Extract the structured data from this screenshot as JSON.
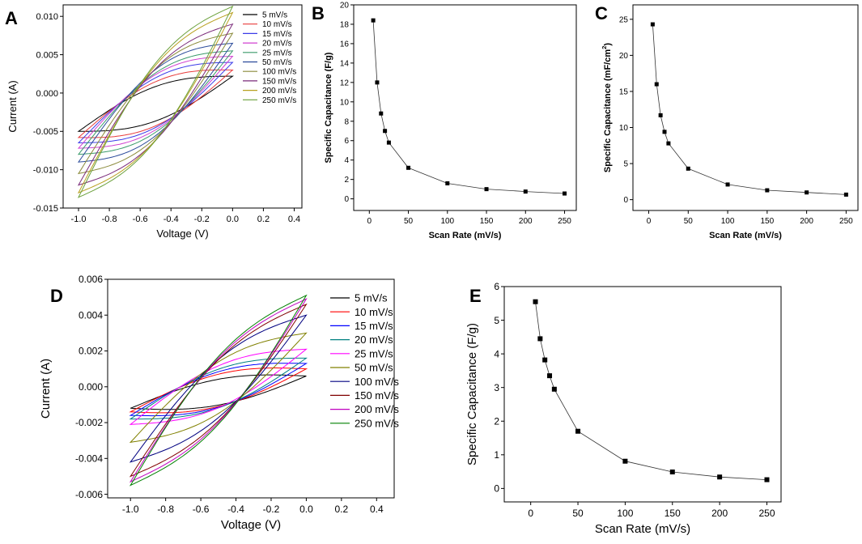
{
  "chart_data": [
    {
      "panel": "A",
      "type": "line",
      "xlabel": "Voltage (V)",
      "ylabel": "Current (A)",
      "xlim": [
        -1.1,
        0.45
      ],
      "ylim": [
        -0.015,
        0.0115
      ],
      "xticks": [
        "-1.0",
        "-0.8",
        "-0.6",
        "-0.4",
        "-0.2",
        "0.0",
        "0.2",
        "0.4"
      ],
      "xtick_values": [
        -1.0,
        -0.8,
        -0.6,
        -0.4,
        -0.2,
        0.0,
        0.2,
        0.4
      ],
      "yticks": [
        "-0.015",
        "-0.010",
        "-0.005",
        "0.000",
        "0.005",
        "0.010"
      ],
      "ytick_values": [
        -0.015,
        -0.01,
        -0.005,
        0.0,
        0.005,
        0.01
      ],
      "legend_position": "top-right",
      "series": [
        {
          "name": "5 mV/s",
          "color": "#000000",
          "cv": {
            "x0": -1.0,
            "x1": 0.0,
            "ymin": -0.005,
            "ymax": 0.0022,
            "cap": 0.0025
          }
        },
        {
          "name": "10 mV/s",
          "color": "#e83c3c",
          "cv": {
            "x0": -1.0,
            "x1": 0.0,
            "ymin": -0.0058,
            "ymax": 0.003,
            "cap": 0.0032
          }
        },
        {
          "name": "15 mV/s",
          "color": "#3c3ce8",
          "cv": {
            "x0": -1.0,
            "x1": 0.0,
            "ymin": -0.0065,
            "ymax": 0.004,
            "cap": 0.0036
          }
        },
        {
          "name": "20 mV/s",
          "color": "#d040d0",
          "cv": {
            "x0": -1.0,
            "x1": 0.0,
            "ymin": -0.0072,
            "ymax": 0.0048,
            "cap": 0.004
          }
        },
        {
          "name": "25 mV/s",
          "color": "#3a9a6a",
          "cv": {
            "x0": -1.0,
            "x1": 0.0,
            "ymin": -0.008,
            "ymax": 0.0055,
            "cap": 0.0043
          }
        },
        {
          "name": "50 mV/s",
          "color": "#2a4a9a",
          "cv": {
            "x0": -1.0,
            "x1": 0.0,
            "ymin": -0.009,
            "ymax": 0.0065,
            "cap": 0.0048
          }
        },
        {
          "name": "100 mV/s",
          "color": "#8a8a3a",
          "cv": {
            "x0": -1.0,
            "x1": 0.0,
            "ymin": -0.0105,
            "ymax": 0.0078,
            "cap": 0.005
          }
        },
        {
          "name": "150 mV/s",
          "color": "#7a2a7a",
          "cv": {
            "x0": -1.0,
            "x1": 0.0,
            "ymin": -0.012,
            "ymax": 0.009,
            "cap": 0.0052
          }
        },
        {
          "name": "200 mV/s",
          "color": "#b8a020",
          "cv": {
            "x0": -1.0,
            "x1": 0.0,
            "ymin": -0.013,
            "ymax": 0.0105,
            "cap": 0.0054
          }
        },
        {
          "name": "250 mV/s",
          "color": "#6aa03a",
          "cv": {
            "x0": -1.0,
            "x1": 0.0,
            "ymin": -0.0136,
            "ymax": 0.0113,
            "cap": 0.0056
          }
        }
      ]
    },
    {
      "panel": "B",
      "type": "line",
      "xlabel": "Scan Rate (mV/s)",
      "ylabel": "Specific Capacitance (F/g)",
      "xlim": [
        -20,
        265
      ],
      "ylim": [
        -1.2,
        20
      ],
      "xticks": [
        "0",
        "50",
        "100",
        "150",
        "200",
        "250"
      ],
      "xtick_values": [
        0,
        50,
        100,
        150,
        200,
        250
      ],
      "yticks": [
        "0",
        "2",
        "4",
        "6",
        "8",
        "10",
        "12",
        "14",
        "16",
        "18",
        "20"
      ],
      "ytick_values": [
        0,
        2,
        4,
        6,
        8,
        10,
        12,
        14,
        16,
        18,
        20
      ],
      "x": [
        5,
        10,
        15,
        20,
        25,
        50,
        100,
        150,
        200,
        250
      ],
      "y": [
        18.4,
        12.0,
        8.8,
        7.0,
        5.8,
        3.2,
        1.6,
        1.0,
        0.75,
        0.55
      ]
    },
    {
      "panel": "C",
      "type": "line",
      "xlabel": "Scan Rate (mV/s)",
      "ylabel_main": "Specific Capacitance (mF/cm",
      "ylabel_sup": "2",
      "ylabel_close": ")",
      "xlim": [
        -20,
        265
      ],
      "ylim": [
        -1.5,
        27
      ],
      "xticks": [
        "0",
        "50",
        "100",
        "150",
        "200",
        "250"
      ],
      "xtick_values": [
        0,
        50,
        100,
        150,
        200,
        250
      ],
      "yticks": [
        "0",
        "5",
        "10",
        "15",
        "20",
        "25"
      ],
      "ytick_values": [
        0,
        5,
        10,
        15,
        20,
        25
      ],
      "x": [
        5,
        10,
        15,
        20,
        25,
        50,
        100,
        150,
        200,
        250
      ],
      "y": [
        24.3,
        16.0,
        11.7,
        9.4,
        7.8,
        4.3,
        2.1,
        1.3,
        1.0,
        0.7
      ]
    },
    {
      "panel": "D",
      "type": "line",
      "xlabel": "Voltage (V)",
      "ylabel": "Current (A)",
      "xlim": [
        -1.13,
        0.5
      ],
      "ylim": [
        -0.0062,
        0.006
      ],
      "xticks": [
        "-1.0",
        "-0.8",
        "-0.6",
        "-0.4",
        "-0.2",
        "0.0",
        "0.2",
        "0.4"
      ],
      "xtick_values": [
        -1.0,
        -0.8,
        -0.6,
        -0.4,
        -0.2,
        0.0,
        0.2,
        0.4
      ],
      "yticks": [
        "-0.006",
        "-0.004",
        "-0.002",
        "0.000",
        "0.002",
        "0.004",
        "0.006"
      ],
      "ytick_values": [
        -0.006,
        -0.004,
        -0.002,
        0.0,
        0.002,
        0.004,
        0.006
      ],
      "legend_position": "top-right",
      "series": [
        {
          "name": "5 mV/s",
          "color": "#000000",
          "cv": {
            "x0": -1.0,
            "x1": 0.0,
            "ymin": -0.0012,
            "ymax": 0.0006,
            "cap": 0.0008
          }
        },
        {
          "name": "10 mV/s",
          "color": "#ff0000",
          "cv": {
            "x0": -1.0,
            "x1": 0.0,
            "ymin": -0.0014,
            "ymax": 0.001,
            "cap": 0.001
          }
        },
        {
          "name": "15 mV/s",
          "color": "#0000ff",
          "cv": {
            "x0": -1.0,
            "x1": 0.0,
            "ymin": -0.0016,
            "ymax": 0.0013,
            "cap": 0.0011
          }
        },
        {
          "name": "20 mV/s",
          "color": "#008080",
          "cv": {
            "x0": -1.0,
            "x1": 0.0,
            "ymin": -0.0018,
            "ymax": 0.0016,
            "cap": 0.0012
          }
        },
        {
          "name": "25 mV/s",
          "color": "#ff00ff",
          "cv": {
            "x0": -1.0,
            "x1": 0.0,
            "ymin": -0.0021,
            "ymax": 0.0021,
            "cap": 0.0013
          }
        },
        {
          "name": "50 mV/s",
          "color": "#808000",
          "cv": {
            "x0": -1.0,
            "x1": 0.0,
            "ymin": -0.0031,
            "ymax": 0.003,
            "cap": 0.0016
          }
        },
        {
          "name": "100 mV/s",
          "color": "#000080",
          "cv": {
            "x0": -1.0,
            "x1": 0.0,
            "ymin": -0.0042,
            "ymax": 0.004,
            "cap": 0.0018
          }
        },
        {
          "name": "150 mV/s",
          "color": "#800000",
          "cv": {
            "x0": -1.0,
            "x1": 0.0,
            "ymin": -0.005,
            "ymax": 0.0046,
            "cap": 0.0019
          }
        },
        {
          "name": "200 mV/s",
          "color": "#c000c0",
          "cv": {
            "x0": -1.0,
            "x1": 0.0,
            "ymin": -0.0053,
            "ymax": 0.0049,
            "cap": 0.002
          }
        },
        {
          "name": "250 mV/s",
          "color": "#008000",
          "cv": {
            "x0": -1.0,
            "x1": 0.0,
            "ymin": -0.0055,
            "ymax": 0.0051,
            "cap": 0.0021
          }
        }
      ]
    },
    {
      "panel": "E",
      "type": "line",
      "xlabel": "Scan Rate (mV/s)",
      "ylabel": "Specific Capacitance (F/g)",
      "xlim": [
        -28,
        265
      ],
      "ylim": [
        -0.4,
        6
      ],
      "xticks": [
        "0",
        "50",
        "100",
        "150",
        "200",
        "250"
      ],
      "xtick_values": [
        0,
        50,
        100,
        150,
        200,
        250
      ],
      "yticks": [
        "0",
        "1",
        "2",
        "3",
        "4",
        "5",
        "6"
      ],
      "ytick_values": [
        0,
        1,
        2,
        3,
        4,
        5,
        6
      ],
      "x": [
        5,
        10,
        15,
        20,
        25,
        50,
        100,
        150,
        200,
        250
      ],
      "y": [
        5.55,
        4.45,
        3.82,
        3.35,
        2.95,
        1.7,
        0.81,
        0.49,
        0.34,
        0.26
      ]
    }
  ]
}
